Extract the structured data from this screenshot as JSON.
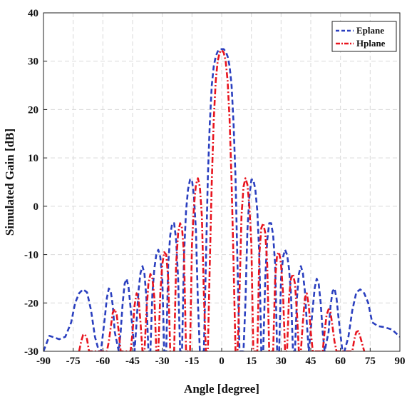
{
  "chart_data": {
    "type": "line",
    "title": "",
    "xlabel": "Angle [degree]",
    "ylabel": "Simulated Gain [dB]",
    "xlim": [
      -90,
      90
    ],
    "ylim": [
      -30,
      40
    ],
    "xticks": [
      -90,
      -75,
      -60,
      -45,
      -30,
      -15,
      0,
      15,
      30,
      45,
      60,
      75,
      90
    ],
    "yticks": [
      -30,
      -20,
      -10,
      0,
      10,
      20,
      30,
      40
    ],
    "grid": true,
    "legend_position": "top-right",
    "series": [
      {
        "name": "Eplane",
        "color": "#2a3fbf",
        "dash": "dashed",
        "x": [
          -90,
          -87,
          -82,
          -79,
          -76,
          -74,
          -72,
          -70,
          -68,
          -66,
          -64,
          -62,
          -61,
          -59,
          -58,
          -57,
          -56,
          -55,
          -54,
          -52,
          -51,
          -50,
          -49,
          -48,
          -47,
          -46,
          -44,
          -43,
          -42,
          -41,
          -40,
          -39,
          -38,
          -37,
          -36,
          -35,
          -34,
          -33,
          -32,
          -31,
          -30,
          -29,
          -28,
          -27,
          -26,
          -25,
          -24,
          -23,
          -22,
          -21,
          -20,
          -19,
          -18,
          -17,
          -16,
          -15,
          -14,
          -13,
          -12,
          -11,
          -10,
          -9,
          -8,
          -7,
          -6,
          -5,
          -4,
          -3,
          -2,
          -1,
          0,
          1,
          2,
          3,
          4,
          5,
          6,
          7,
          8,
          9,
          10,
          11,
          12,
          13,
          14,
          15,
          16,
          17,
          18,
          19,
          20,
          21,
          22,
          23,
          24,
          25,
          26,
          27,
          28,
          29,
          30,
          31,
          32,
          33,
          34,
          35,
          36,
          37,
          38,
          39,
          40,
          41,
          42,
          43,
          44,
          46,
          47,
          48,
          49,
          50,
          51,
          52,
          54,
          55,
          56,
          57,
          58,
          59,
          61,
          62,
          64,
          66,
          68,
          70,
          72,
          74,
          76,
          79,
          82,
          86,
          90
        ],
        "values": [
          -30,
          -26.8,
          -27.5,
          -27,
          -24,
          -20,
          -18,
          -17.2,
          -17.8,
          -21.5,
          -27,
          -30,
          -30,
          -23,
          -19,
          -17,
          -17.6,
          -20.5,
          -26,
          -30,
          -26,
          -20,
          -16,
          -15,
          -16.8,
          -21,
          -30,
          -24,
          -17.5,
          -13.8,
          -12.4,
          -14,
          -19,
          -30,
          -30,
          -18,
          -12.8,
          -10,
          -9,
          -10.5,
          -15,
          -30,
          -30,
          -12,
          -6,
          -3.5,
          -3.5,
          -7,
          -15,
          -30,
          -30,
          -10,
          -1,
          3.5,
          5.5,
          5.5,
          2,
          -5,
          -20,
          -30,
          -30,
          -30,
          -12,
          6,
          17,
          25,
          29,
          31,
          32,
          32.5,
          32.5,
          32.5,
          32,
          31,
          29,
          25,
          17,
          6,
          -12,
          -30,
          -30,
          -30,
          -20,
          -5,
          2,
          5.5,
          5.5,
          3.5,
          -1,
          -10,
          -30,
          -30,
          -15,
          -7,
          -3.5,
          -3.5,
          -6,
          -12,
          -30,
          -30,
          -15,
          -10.5,
          -9,
          -10,
          -12.8,
          -18,
          -30,
          -30,
          -19,
          -14,
          -12.4,
          -13.8,
          -17.5,
          -24,
          -30,
          -21,
          -16.8,
          -15,
          -16,
          -20,
          -26,
          -30,
          -26,
          -20.5,
          -17.6,
          -17,
          -19,
          -23,
          -30,
          -30,
          -27,
          -21.5,
          -17.8,
          -17.2,
          -18,
          -20,
          -24,
          -24.8,
          -25,
          -25.5,
          -27
        ]
      },
      {
        "name": "Hplane",
        "color": "#e8141e",
        "dash": "dashdot",
        "x": [
          -72,
          -71,
          -70,
          -69,
          -68,
          -67,
          -66,
          -65,
          -64,
          -58,
          -57,
          -56,
          -55,
          -54,
          -53,
          -52,
          -51,
          -46,
          -45,
          -44,
          -43,
          -42,
          -41,
          -40,
          -39,
          -38,
          -37,
          -36,
          -35,
          -34,
          -33,
          -32,
          -31,
          -30,
          -29,
          -28,
          -27,
          -26,
          -25,
          -24,
          -23,
          -22,
          -21,
          -20,
          -19,
          -18,
          -17,
          -16,
          -15,
          -14,
          -13,
          -12,
          -11,
          -10,
          -9,
          -8,
          -7,
          -6,
          -5,
          -4,
          -3,
          -2,
          -1,
          0,
          1,
          2,
          3,
          4,
          5,
          6,
          7,
          8,
          9,
          10,
          11,
          12,
          13,
          14,
          15,
          16,
          17,
          18,
          19,
          20,
          21,
          22,
          23,
          24,
          25,
          26,
          27,
          28,
          29,
          30,
          31,
          32,
          33,
          34,
          35,
          36,
          37,
          38,
          39,
          40,
          41,
          42,
          43,
          44,
          45,
          46,
          51,
          52,
          53,
          54,
          55,
          56,
          57,
          58,
          64,
          65,
          66,
          67,
          68,
          69,
          70,
          71,
          72
        ],
        "values": [
          -30,
          -28,
          -26.6,
          -26.5,
          -27.5,
          -30,
          -30,
          -30,
          -30,
          -30,
          -28,
          -25,
          -22,
          -21.3,
          -22.5,
          -26,
          -30,
          -30,
          -26,
          -20.5,
          -18,
          -19,
          -24,
          -30,
          -30,
          -22,
          -16,
          -14,
          -15,
          -19,
          -30,
          -30,
          -18,
          -12,
          -9.5,
          -10,
          -15,
          -30,
          -30,
          -30,
          -12,
          -5.5,
          -3.5,
          -4.5,
          -10,
          -30,
          -30,
          -30,
          -8,
          0,
          4.5,
          5.8,
          4,
          -2,
          -18,
          -30,
          -30,
          -12,
          5,
          18,
          26,
          30,
          31.8,
          32.3,
          31.8,
          30,
          26,
          18,
          5,
          -12,
          -30,
          -30,
          -18,
          -2,
          4,
          5.8,
          4.5,
          0,
          -8,
          -30,
          -30,
          -30,
          -10,
          -4.5,
          -3.5,
          -5.5,
          -12,
          -30,
          -30,
          -30,
          -15,
          -10,
          -9.5,
          -12,
          -18,
          -30,
          -30,
          -19,
          -15,
          -14,
          -16,
          -22,
          -30,
          -30,
          -24,
          -19,
          -18,
          -20.5,
          -26,
          -30,
          -30,
          -26,
          -22.5,
          -21.3,
          -22,
          -25,
          -28,
          -30,
          -30,
          -30,
          -30,
          -27.5,
          -26,
          -25.8,
          -27,
          -28.5,
          -30
        ]
      }
    ]
  }
}
